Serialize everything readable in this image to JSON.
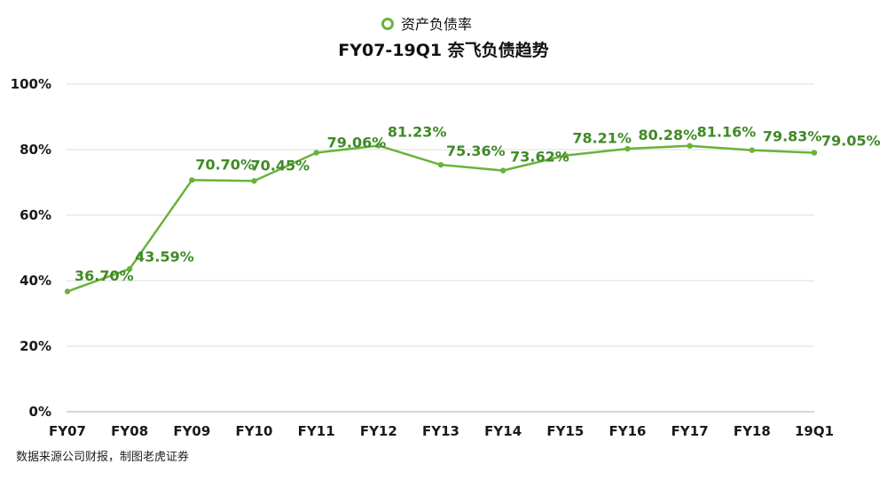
{
  "chart_data": {
    "type": "line",
    "title": "FY07-19Q1 奈飞负债趋势",
    "legend_position": "top-center",
    "grid": true,
    "categories": [
      "FY07",
      "FY08",
      "FY09",
      "FY10",
      "FY11",
      "FY12",
      "FY13",
      "FY14",
      "FY15",
      "FY16",
      "FY17",
      "FY18",
      "19Q1"
    ],
    "series": [
      {
        "name": "资产负债率",
        "color": "#6ab23b",
        "values": [
          36.7,
          43.59,
          70.7,
          70.45,
          79.06,
          81.23,
          75.36,
          73.62,
          78.21,
          80.28,
          81.16,
          79.83,
          79.05
        ],
        "labels": [
          "36.70%",
          "43.59%",
          "70.70%",
          "70.45%",
          "79.06%",
          "81.23%",
          "75.36%",
          "73.62%",
          "78.21%",
          "80.28%",
          "81.16%",
          "79.83%",
          "79.05%"
        ]
      }
    ],
    "ylim": [
      0,
      100
    ],
    "yticks": [
      0,
      20,
      40,
      60,
      80,
      100
    ],
    "ytick_labels": [
      "0%",
      "20%",
      "40%",
      "60%",
      "80%",
      "100%"
    ],
    "label_color": "#3f8a27"
  },
  "source_note": "数据来源公司财报，制图老虎证券"
}
